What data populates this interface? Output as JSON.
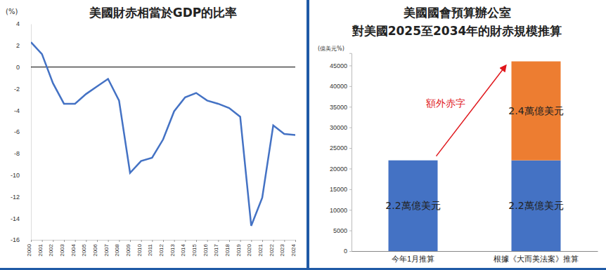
{
  "chart_data": [
    {
      "type": "line",
      "title": "美國財赤相當於GDP的比率",
      "y_label": "(%)",
      "x": [
        2000,
        2001,
        2002,
        2003,
        2004,
        2005,
        2006,
        2007,
        2008,
        2009,
        2010,
        2011,
        2012,
        2013,
        2014,
        2015,
        2016,
        2017,
        2018,
        2019,
        2020,
        2021,
        2022,
        2023,
        2024
      ],
      "values": [
        2.3,
        1.2,
        -1.5,
        -3.4,
        -3.4,
        -2.5,
        -1.8,
        -1.1,
        -3.1,
        -9.8,
        -8.7,
        -8.4,
        -6.7,
        -4.1,
        -2.8,
        -2.4,
        -3.1,
        -3.4,
        -3.8,
        -4.6,
        -14.7,
        -12.1,
        -5.4,
        -6.2,
        -6.3
      ],
      "color": "#4472c4",
      "xlim": [
        2000,
        2024
      ],
      "xticks": [
        2000,
        2001,
        2002,
        2003,
        2004,
        2005,
        2006,
        2007,
        2008,
        2009,
        2010,
        2011,
        2012,
        2013,
        2014,
        2015,
        2016,
        2017,
        2018,
        2019,
        2020,
        2021,
        2022,
        2023,
        2024
      ],
      "ylim": [
        -16,
        4
      ],
      "yticks": [
        -16,
        -14,
        -12,
        -10,
        -8,
        -6,
        -4,
        -2,
        0,
        2,
        4
      ],
      "reference_line": 0,
      "grid": false
    },
    {
      "type": "bar",
      "title": [
        "美國國會預算辦公室",
        "對美國2025至2034年的財赤規模推算"
      ],
      "y_label": "(億美元%)",
      "categories": [
        "今年1月推算",
        "根據《大而美法案》推算"
      ],
      "series": [
        {
          "color": "#4472c4",
          "values": [
            22000,
            22000
          ],
          "value_labels": [
            "2.2萬億美元",
            "2.2萬億美元"
          ]
        },
        {
          "color": "#ed7d31",
          "values": [
            null,
            24000
          ],
          "value_labels": [
            null,
            "2.4萬億美元"
          ]
        }
      ],
      "stacked": true,
      "data_labels": true,
      "ylim": [
        0,
        48000
      ],
      "yticks": [
        0,
        5000,
        10000,
        15000,
        20000,
        25000,
        30000,
        35000,
        40000,
        45000
      ],
      "annotations": [
        {
          "text": "額外赤字"
        }
      ],
      "grid": false
    }
  ]
}
